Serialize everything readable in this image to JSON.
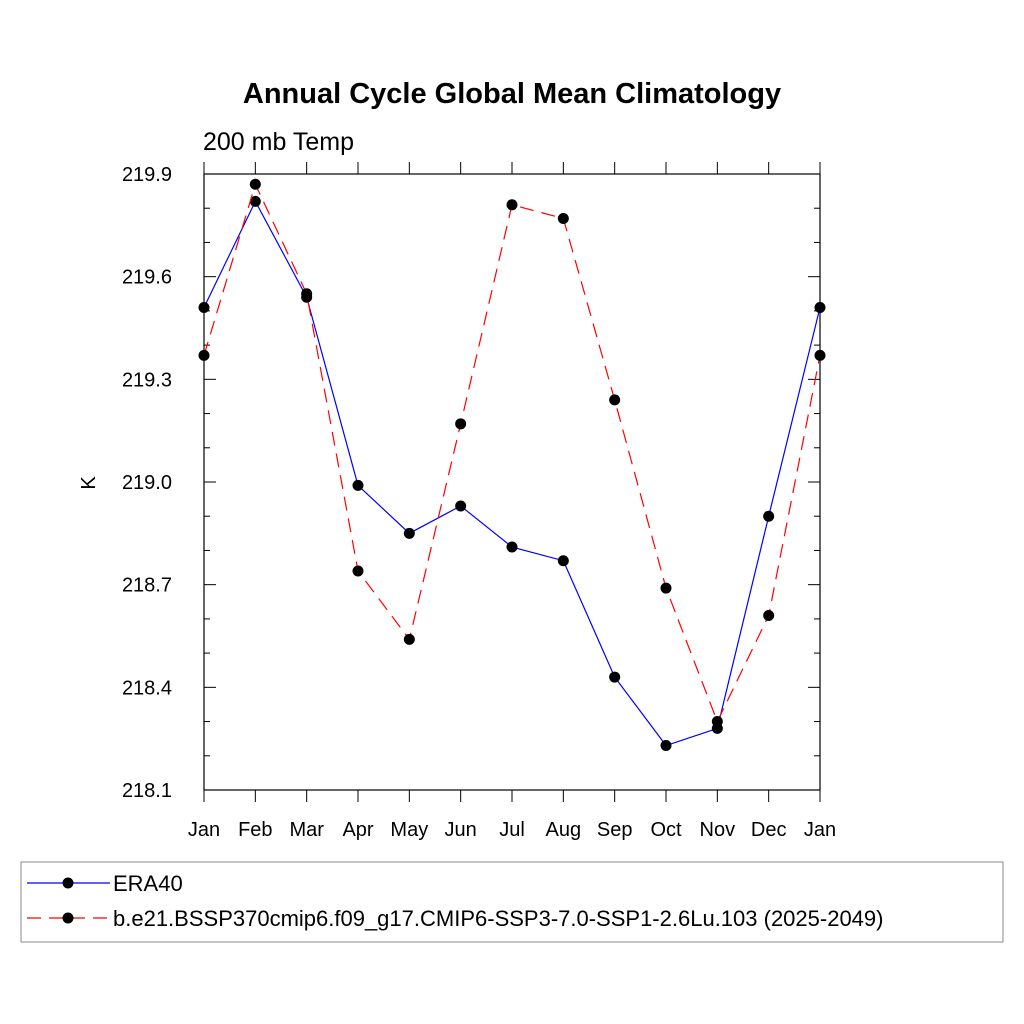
{
  "chart_data": {
    "type": "line",
    "title": "Annual Cycle Global Mean Climatology",
    "subtitle": "200 mb Temp",
    "xlabel": "",
    "ylabel": "K",
    "categories": [
      "Jan",
      "Feb",
      "Mar",
      "Apr",
      "May",
      "Jun",
      "Jul",
      "Aug",
      "Sep",
      "Oct",
      "Nov",
      "Dec",
      "Jan"
    ],
    "ylim": [
      218.1,
      219.9
    ],
    "yticks": [
      "219.9",
      "219.6",
      "219.3",
      "219.0",
      "218.7",
      "218.4",
      "218.1"
    ],
    "grid": false,
    "legend_position": "bottom",
    "series": [
      {
        "name": "ERA40",
        "color": "#0000ff",
        "dash": "solid",
        "values": [
          219.51,
          219.82,
          219.54,
          218.99,
          218.85,
          218.93,
          218.81,
          218.77,
          218.43,
          218.23,
          218.28,
          218.9,
          219.51
        ]
      },
      {
        "name": "b.e21.BSSP370cmip6.f09_g17.CMIP6-SSP3-7.0-SSP1-2.6Lu.103 (2025-2049)",
        "color": "#ff0000",
        "dash": "dashed",
        "values": [
          219.37,
          219.87,
          219.55,
          218.74,
          218.54,
          219.17,
          219.81,
          219.77,
          219.24,
          218.69,
          218.3,
          218.61,
          219.37
        ]
      }
    ]
  }
}
